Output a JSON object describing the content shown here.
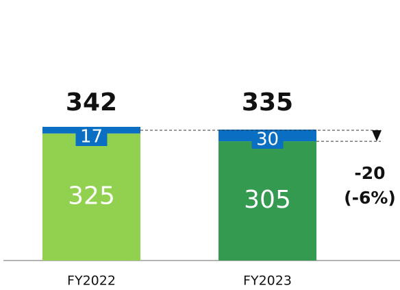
{
  "chart_data": {
    "type": "stacked_bar",
    "categories": [
      "FY2022",
      "FY2023"
    ],
    "series": [
      {
        "colors": [
          "#92d050",
          "#339a50"
        ],
        "values": [
          325,
          305
        ]
      },
      {
        "color": "#0a6fc2",
        "values": [
          17,
          30
        ]
      }
    ],
    "totals": [
      342,
      335
    ],
    "annotations": [
      "-20",
      "(-6%)"
    ]
  }
}
